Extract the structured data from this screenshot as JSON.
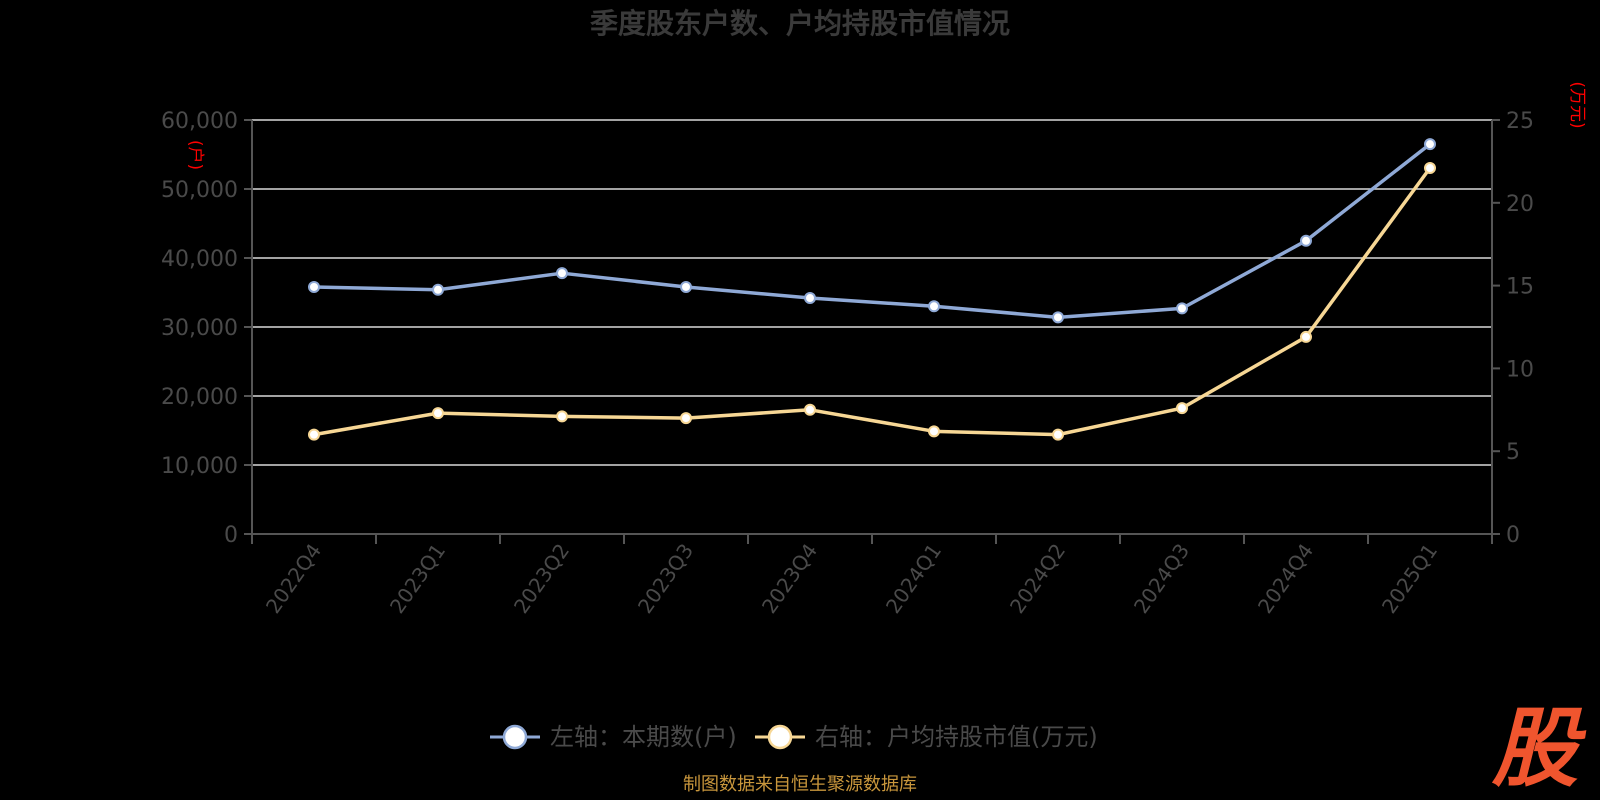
{
  "chart_data": {
    "type": "line",
    "title": "季度股东户数、户均持股市值情况",
    "categories": [
      "2022Q4",
      "2023Q1",
      "2023Q2",
      "2023Q3",
      "2023Q4",
      "2024Q1",
      "2024Q2",
      "2024Q3",
      "2024Q4",
      "2025Q1"
    ],
    "series": [
      {
        "name": "左轴：本期数(户)",
        "axis": "left",
        "color": "#8fa9d6",
        "values": [
          35800,
          35400,
          37800,
          35800,
          34200,
          33000,
          31400,
          32700,
          42500,
          56500
        ]
      },
      {
        "name": "右轴：户均持股市值(万元)",
        "axis": "right",
        "color": "#f7d795",
        "values": [
          6.0,
          7.3,
          7.1,
          7.0,
          7.5,
          6.2,
          6.0,
          7.6,
          11.9,
          22.1
        ]
      }
    ],
    "left_axis": {
      "ylim": [
        0,
        60000
      ],
      "ticks": [
        "0",
        "10,000",
        "20,000",
        "30,000",
        "40,000",
        "50,000",
        "60,000"
      ],
      "unit": "(户)"
    },
    "right_axis": {
      "ylim": [
        0,
        25
      ],
      "ticks": [
        "0",
        "5",
        "10",
        "15",
        "20",
        "25"
      ],
      "unit": "(万元)"
    },
    "grid": true,
    "legend_position": "bottom-center"
  },
  "source_note": "制图数据来自恒生聚源数据库",
  "watermark_text": "股",
  "colors": {
    "accent_red": "#ff0000",
    "logo": "#f0552e"
  }
}
